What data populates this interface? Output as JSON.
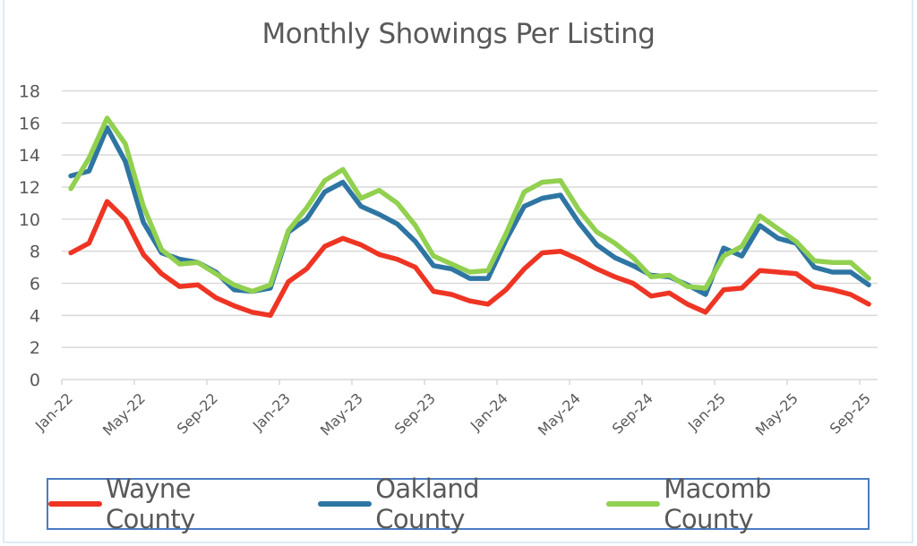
{
  "chart_data": {
    "type": "line",
    "title": "Monthly Showings Per Listing",
    "xlabel": "",
    "ylabel": "",
    "ylim": [
      0,
      18
    ],
    "yticks": [
      0,
      2,
      4,
      6,
      8,
      10,
      12,
      14,
      16,
      18
    ],
    "grid": true,
    "legend_position": "bottom",
    "x": [
      "Jan-22",
      "Feb-22",
      "Mar-22",
      "Apr-22",
      "May-22",
      "Jun-22",
      "Jul-22",
      "Aug-22",
      "Sep-22",
      "Oct-22",
      "Nov-22",
      "Dec-22",
      "Jan-23",
      "Feb-23",
      "Mar-23",
      "Apr-23",
      "May-23",
      "Jun-23",
      "Jul-23",
      "Aug-23",
      "Sep-23",
      "Oct-23",
      "Nov-23",
      "Dec-23",
      "Jan-24",
      "Feb-24",
      "Mar-24",
      "Apr-24",
      "May-24",
      "Jun-24",
      "Jul-24",
      "Aug-24",
      "Sep-24",
      "Oct-24",
      "Nov-24",
      "Dec-24",
      "Jan-25",
      "Feb-25",
      "Mar-25",
      "Apr-25",
      "May-25",
      "Jun-25",
      "Jul-25",
      "Aug-25",
      "Sep-25"
    ],
    "xtick_labels": [
      "Jan-22",
      "May-22",
      "Sep-22",
      "Jan-23",
      "May-23",
      "Sep-23",
      "Jan-24",
      "May-24",
      "Sep-24",
      "Jan-25",
      "May-25",
      "Sep-25"
    ],
    "series": [
      {
        "name": "Wayne County",
        "color": "#ee3524",
        "values": [
          7.9,
          8.5,
          11.1,
          10.0,
          7.8,
          6.6,
          5.8,
          5.9,
          5.1,
          4.6,
          4.2,
          4.0,
          6.1,
          6.9,
          8.3,
          8.8,
          8.4,
          7.8,
          7.5,
          7.0,
          5.5,
          5.3,
          4.9,
          4.7,
          5.6,
          6.9,
          7.9,
          8.0,
          7.5,
          6.9,
          6.4,
          6.0,
          5.2,
          5.4,
          4.7,
          4.2,
          5.6,
          5.7,
          6.8,
          6.7,
          6.6,
          5.8,
          5.6,
          5.3,
          4.7
        ]
      },
      {
        "name": "Oakland County",
        "color": "#2e75a3",
        "values": [
          12.7,
          13.0,
          15.7,
          13.6,
          9.8,
          7.9,
          7.5,
          7.3,
          6.7,
          5.6,
          5.5,
          5.7,
          9.2,
          10.0,
          11.7,
          12.3,
          10.8,
          10.3,
          9.7,
          8.6,
          7.1,
          6.9,
          6.3,
          6.3,
          8.7,
          10.8,
          11.3,
          11.5,
          9.8,
          8.4,
          7.6,
          7.1,
          6.5,
          6.4,
          5.9,
          5.3,
          8.2,
          7.7,
          9.6,
          8.8,
          8.5,
          7.0,
          6.7,
          6.7,
          5.9
        ]
      },
      {
        "name": "Macomb County",
        "color": "#92d050",
        "values": [
          11.9,
          13.8,
          16.3,
          14.7,
          10.8,
          8.1,
          7.2,
          7.3,
          6.6,
          5.9,
          5.5,
          5.9,
          9.3,
          10.7,
          12.4,
          13.1,
          11.3,
          11.8,
          11.0,
          9.6,
          7.7,
          7.2,
          6.7,
          6.8,
          9.1,
          11.7,
          12.3,
          12.4,
          10.6,
          9.2,
          8.5,
          7.6,
          6.4,
          6.5,
          5.8,
          5.7,
          7.7,
          8.3,
          10.2,
          9.4,
          8.6,
          7.4,
          7.3,
          7.3,
          6.3
        ]
      }
    ]
  }
}
